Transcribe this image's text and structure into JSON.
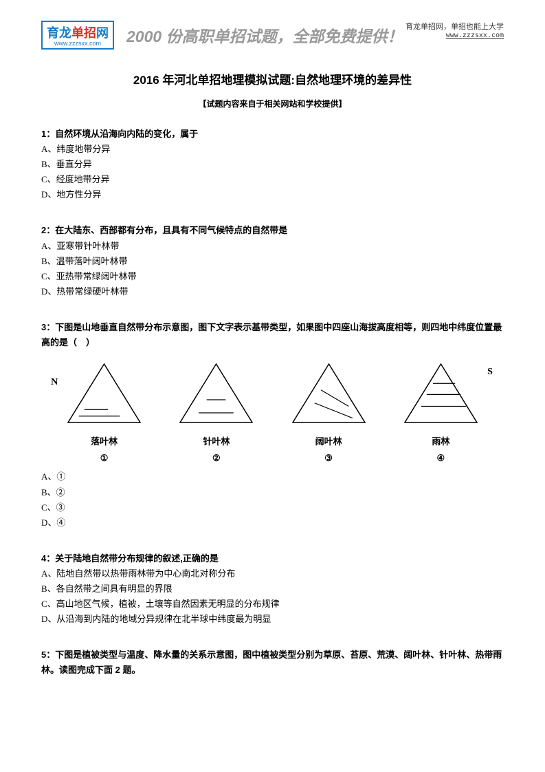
{
  "header": {
    "logo_main": "育龙",
    "logo_red": "单招",
    "logo_suffix": "网",
    "logo_url": "www.zzzsxx.com",
    "slogan": "2000 份高职单招试题，全部免费提供！",
    "right_text": "育龙单招网，单招也能上大学",
    "right_url": "www.zzzsxx.com"
  },
  "title": "2016 年河北单招地理模拟试题:自然地理环境的差异性",
  "subtitle": "【试题内容来自于相关网站和学校提供】",
  "q1": {
    "text": "1：自然环境从沿海向内陆的变化，属于",
    "a": "A、纬度地带分异",
    "b": "B、垂直分异",
    "c": "C、经度地带分异",
    "d": "D、地方性分异"
  },
  "q2": {
    "text": "2：在大陆东、西部都有分布，且具有不同气候特点的自然带是",
    "a": "A、亚寒带针叶林带",
    "b": "B、温带落叶阔叶林带",
    "c": "C、亚热带常绿阔叶林带",
    "d": "D、热带常绿硬叶林带"
  },
  "q3": {
    "text": "3：下图是山地垂直自然带分布示意图，图下文字表示基带类型，如果图中四座山海拔高度相等，则四地中纬度位置最高的是（　）",
    "n_label": "N",
    "s_label": "S",
    "triangles": [
      {
        "label": "落叶林",
        "num": "①",
        "lines": [
          [
            0.25,
            0.75,
            0.55,
            0.75
          ],
          [
            0.18,
            0.85,
            0.7,
            0.85
          ]
        ]
      },
      {
        "label": "针叶林",
        "num": "②",
        "lines": [
          [
            0.38,
            0.6,
            0.62,
            0.6
          ],
          [
            0.28,
            0.8,
            0.72,
            0.8
          ]
        ]
      },
      {
        "label": "阔叶林",
        "num": "③",
        "lines": [
          [
            0.4,
            0.45,
            0.75,
            0.7
          ],
          [
            0.32,
            0.65,
            0.8,
            0.88
          ]
        ]
      },
      {
        "label": "雨林",
        "num": "④",
        "lines": [
          [
            0.4,
            0.35,
            0.68,
            0.35
          ],
          [
            0.32,
            0.52,
            0.75,
            0.52
          ],
          [
            0.25,
            0.7,
            0.82,
            0.7
          ]
        ]
      }
    ],
    "triangle_stroke": "#000000",
    "triangle_width": 115,
    "triangle_height": 95,
    "a": "A、①",
    "b": "B、②",
    "c": "C、③",
    "d": "D、④"
  },
  "q4": {
    "text": "4：关于陆地自然带分布规律的叙述,正确的是",
    "a": "A、陆地自然带以热带雨林带为中心南北对称分布",
    "b": "B、各自然带之间具有明显的界限",
    "c": "C、高山地区气候，植被，土壤等自然因素无明显的分布规律",
    "d": "D、从沿海到内陆的地域分异规律在北半球中纬度最为明显"
  },
  "q5": {
    "text": "5：下图是植被类型与温度、降水量的关系示意图，图中植被类型分别为草原、苔原、荒漠、阔叶林、针叶林、热带雨林。读图完成下面 2 题。"
  }
}
